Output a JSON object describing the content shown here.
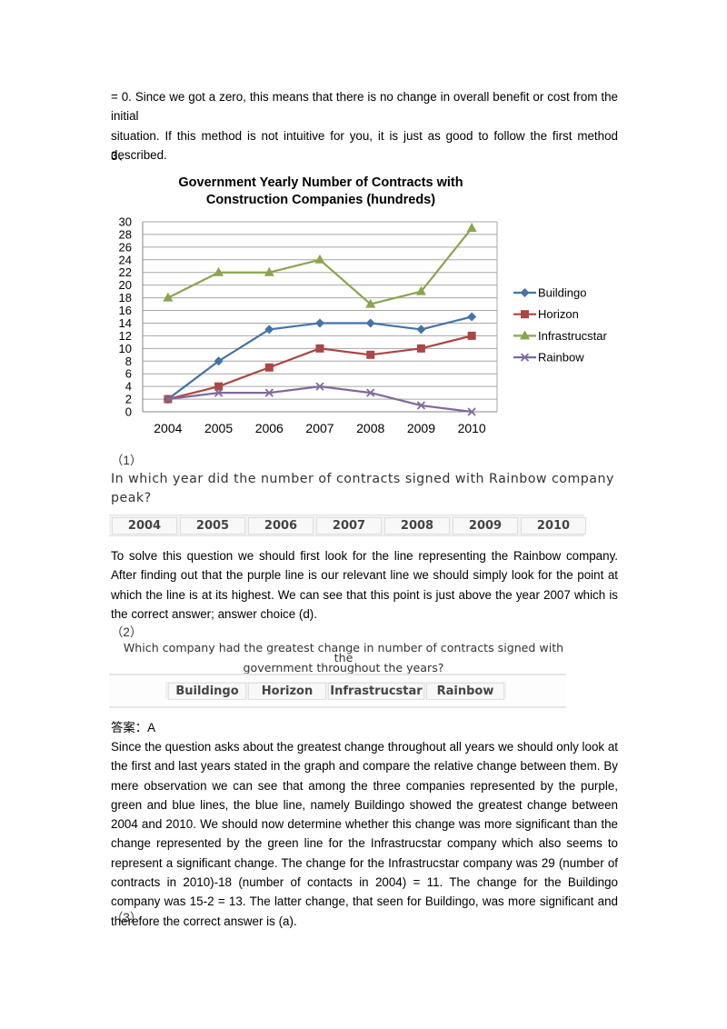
{
  "intro": {
    "line1": "= 0. Since we got a zero, this means that there is no change in overall benefit or cost from the initial",
    "line2": "situation. If this method is not intuitive for you, it is just as good to follow the first method",
    "line3": "described."
  },
  "section_number": "3、",
  "chart_data": {
    "type": "line",
    "title_line1": "Government Yearly Number of Contracts with",
    "title_line2": "Construction Companies (hundreds)",
    "categories": [
      "2004",
      "2005",
      "2006",
      "2007",
      "2008",
      "2009",
      "2010"
    ],
    "yticks": [
      "0",
      "2",
      "4",
      "6",
      "8",
      "10",
      "12",
      "14",
      "16",
      "18",
      "20",
      "22",
      "24",
      "26",
      "28",
      "30"
    ],
    "ylim": [
      0,
      30
    ],
    "grid": true,
    "legend_position": "right",
    "series": [
      {
        "name": "Buildingo",
        "values": [
          2,
          8,
          13,
          14,
          14,
          13,
          15
        ],
        "color": "#4572a7",
        "marker": "diamond"
      },
      {
        "name": "Horizon",
        "values": [
          2,
          4,
          7,
          10,
          9,
          10,
          12
        ],
        "color": "#aa4643",
        "marker": "square"
      },
      {
        "name": "Infrastrucstar",
        "values": [
          18,
          22,
          22,
          24,
          17,
          19,
          29
        ],
        "color": "#89a54e",
        "marker": "triangle"
      },
      {
        "name": "Rainbow",
        "values": [
          2,
          3,
          3,
          4,
          3,
          1,
          0
        ],
        "color": "#80699b",
        "marker": "x"
      }
    ]
  },
  "q1": {
    "number": "（1）",
    "question": "In which year did the number of contracts signed with Rainbow company peak?",
    "choices": [
      "2004",
      "2005",
      "2006",
      "2007",
      "2008",
      "2009",
      "2010"
    ],
    "explanation": "To solve this question we should first look for the line representing the Rainbow company. After finding out that the purple line is our relevant line we should simply look for the point at which the line is at its highest. We can see that this point is just above the year 2007 which is the correct answer; answer choice (d)."
  },
  "q2": {
    "number": "（2）",
    "question_line1": "Which company had the greatest change in number of contracts signed with the",
    "question_line2": "government throughout the years?",
    "choices": [
      "Buildingo",
      "Horizon",
      "Infrastrucstar",
      "Rainbow"
    ],
    "answer_label": "答案：A",
    "explanation": "Since the question asks about the greatest change throughout all years we should only look at the first and last years stated in the graph and compare the relative change between them. By mere observation we can see that among the three companies represented by the purple, green and blue lines, the blue line, namely Buildingo showed the greatest change between 2004 and 2010. We should now determine whether this change was more significant than the change represented by the green line for the Infrastrucstar company which also seems to represent a significant change. The change for the Infrastrucstar company was 29 (number of contracts in 2010)-18 (number of contacts in 2004) = 11. The change for the Buildingo company was 15-2 = 13. The latter change, that seen for Buildingo, was more significant and therefore the correct answer is (a)."
  },
  "q3": {
    "number": "（3）"
  }
}
